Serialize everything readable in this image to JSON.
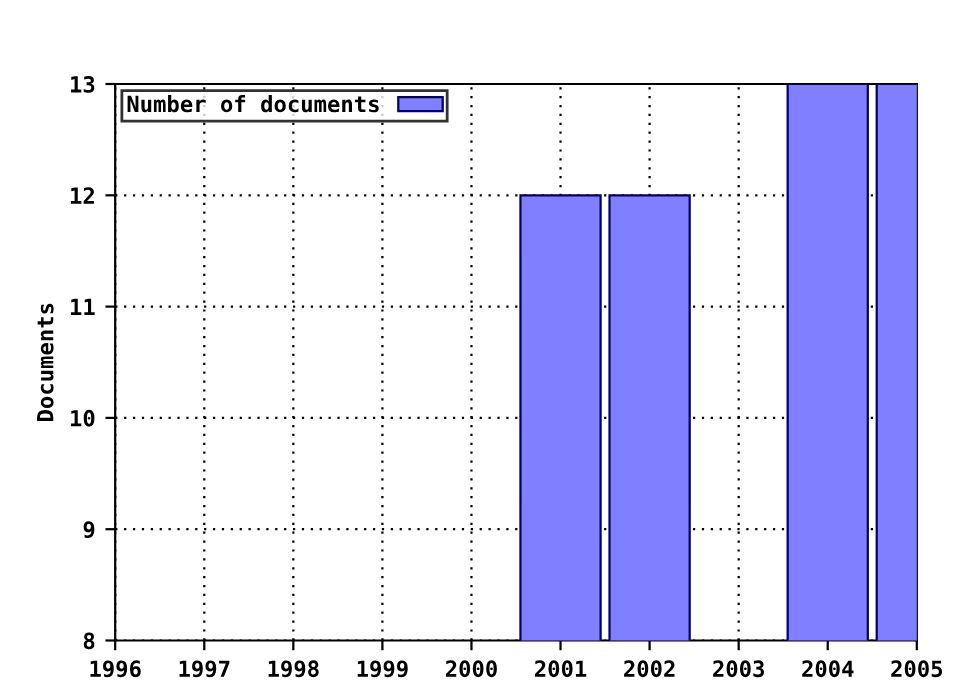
{
  "chart_data": {
    "type": "bar",
    "ylabel": "Documents",
    "x": [
      2001,
      2002,
      2004,
      2005
    ],
    "series": [
      {
        "name": "Number of documents",
        "color": "#7f7fff",
        "values": [
          12,
          12,
          13,
          13
        ]
      }
    ],
    "xlim": [
      1996,
      2005
    ],
    "xticks": [
      1996,
      1997,
      1998,
      1999,
      2000,
      2001,
      2002,
      2003,
      2004,
      2005
    ],
    "ylim": [
      8,
      13
    ],
    "yticks": [
      8,
      9,
      10,
      11,
      12,
      13
    ],
    "grid": true,
    "legend": "top left"
  }
}
